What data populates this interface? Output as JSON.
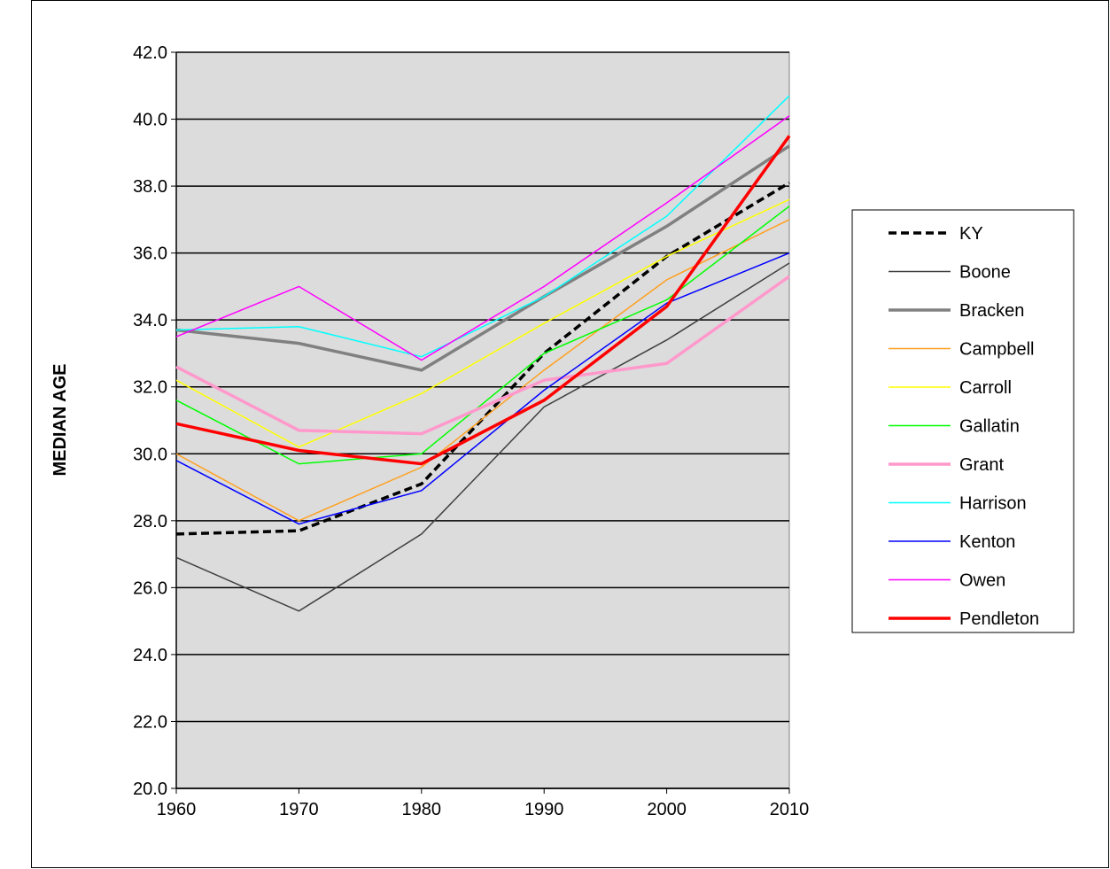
{
  "chart_data": {
    "type": "line",
    "title": "",
    "xlabel": "",
    "ylabel": "MEDIAN AGE",
    "x": [
      1960,
      1970,
      1980,
      1990,
      2000,
      2010
    ],
    "x_tick_labels": [
      "1960",
      "1970",
      "1980",
      "1990",
      "2000",
      "2010"
    ],
    "ylim": [
      20.0,
      42.0
    ],
    "y_ticks": [
      20.0,
      22.0,
      24.0,
      26.0,
      28.0,
      30.0,
      32.0,
      34.0,
      36.0,
      38.0,
      40.0,
      42.0
    ],
    "y_tick_labels": [
      "20.0",
      "22.0",
      "24.0",
      "26.0",
      "28.0",
      "30.0",
      "32.0",
      "34.0",
      "36.0",
      "38.0",
      "40.0",
      "42.0"
    ],
    "grid": true,
    "plot_background": "#dcdcdc",
    "legend_position": "right",
    "series": [
      {
        "name": "KY",
        "values": [
          27.6,
          27.7,
          29.1,
          33.0,
          35.9,
          38.1
        ],
        "color": "#000000",
        "style": "dashed",
        "weight": "thick"
      },
      {
        "name": "Boone",
        "values": [
          26.9,
          25.3,
          27.6,
          31.4,
          33.4,
          35.7
        ],
        "color": "#404040",
        "style": "solid",
        "weight": "thin"
      },
      {
        "name": "Bracken",
        "values": [
          33.7,
          33.3,
          32.5,
          34.7,
          36.8,
          39.2
        ],
        "color": "#808080",
        "style": "solid",
        "weight": "thick"
      },
      {
        "name": "Campbell",
        "values": [
          30.0,
          28.0,
          29.6,
          32.5,
          35.2,
          37.0
        ],
        "color": "#ffa020",
        "style": "solid",
        "weight": "thin"
      },
      {
        "name": "Carroll",
        "values": [
          32.2,
          30.2,
          31.8,
          33.9,
          35.9,
          37.6
        ],
        "color": "#ffff00",
        "style": "solid",
        "weight": "thin"
      },
      {
        "name": "Gallatin",
        "values": [
          31.6,
          29.7,
          30.0,
          33.0,
          34.6,
          37.4
        ],
        "color": "#00ff00",
        "style": "solid",
        "weight": "thin"
      },
      {
        "name": "Grant",
        "values": [
          32.6,
          30.7,
          30.6,
          32.2,
          32.7,
          35.3
        ],
        "color": "#ff99cc",
        "style": "solid",
        "weight": "thick"
      },
      {
        "name": "Harrison",
        "values": [
          33.7,
          33.8,
          32.9,
          34.7,
          37.1,
          40.7
        ],
        "color": "#00ffff",
        "style": "solid",
        "weight": "thin"
      },
      {
        "name": "Kenton",
        "values": [
          29.8,
          27.9,
          28.9,
          31.9,
          34.5,
          36.0
        ],
        "color": "#0000ff",
        "style": "solid",
        "weight": "thin"
      },
      {
        "name": "Owen",
        "values": [
          33.5,
          35.0,
          32.8,
          35.0,
          37.5,
          40.1
        ],
        "color": "#ff00ff",
        "style": "solid",
        "weight": "thin"
      },
      {
        "name": "Pendleton",
        "values": [
          30.9,
          30.1,
          29.7,
          31.6,
          34.4,
          39.5
        ],
        "color": "#ff0000",
        "style": "solid",
        "weight": "thick"
      }
    ]
  }
}
